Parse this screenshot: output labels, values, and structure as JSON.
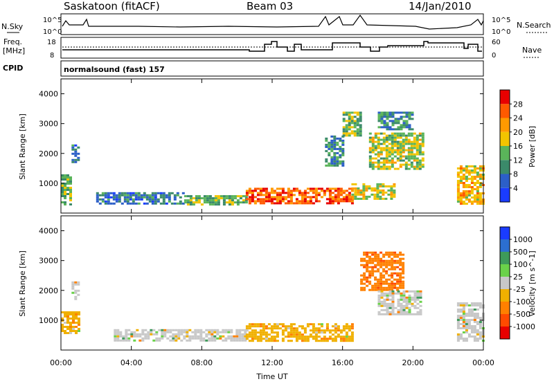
{
  "header": {
    "station": "Saskatoon (fitACF)",
    "beam": "Beam 03",
    "date": "14/Jan/2010"
  },
  "top_panel": {
    "left_label": "N.Sky",
    "left_ticks": [
      "10^5",
      "10^0"
    ],
    "right_ticks": [
      "10^5",
      "10^0"
    ],
    "right_label": "N.Search"
  },
  "freq_panel": {
    "label_line1": "Freq.",
    "label_line2": "[MHz]",
    "left_ticks": [
      "18",
      "8"
    ],
    "right_ticks": [
      "60",
      "0"
    ],
    "right_label": "Nave"
  },
  "cpid": {
    "label": "CPID",
    "text": "normalsound (fast) 157"
  },
  "power_panel": {
    "ylabel": "Slant Range [km]",
    "yticks": [
      "1000",
      "2000",
      "3000",
      "4000"
    ],
    "colorbar": {
      "label": "Power [dB]",
      "ticks": [
        "4",
        "8",
        "12",
        "16",
        "20",
        "24",
        "28"
      ],
      "colors": [
        "#1a3cff",
        "#2c5fc8",
        "#3b8a6a",
        "#5ab45a",
        "#f2c400",
        "#ff9a00",
        "#ff5a00",
        "#e80000"
      ]
    }
  },
  "velocity_panel": {
    "ylabel": "Slant Range [km]",
    "yticks": [
      "1000",
      "2000",
      "3000",
      "4000"
    ],
    "colorbar": {
      "label": "Velocity [m s^-1]",
      "ticks": [
        "1000",
        "500",
        "100",
        "25",
        "-25",
        "-100",
        "-500",
        "-1000"
      ],
      "colors": [
        "#1a3cff",
        "#2c6fd0",
        "#3e9a5a",
        "#6ad24a",
        "#c8c8c8",
        "#f0b000",
        "#ff8000",
        "#ff4a00",
        "#e80000"
      ]
    }
  },
  "xaxis": {
    "ticks": [
      "00:00",
      "04:00",
      "08:00",
      "12:00",
      "16:00",
      "20:00",
      "00:00"
    ],
    "label": "Time UT"
  },
  "chart_data": [
    {
      "type": "heatmap",
      "title": "",
      "xlabel": "Time UT",
      "ylabel": "Slant Range [km]",
      "xlim": [
        0,
        24
      ],
      "ylim": [
        0,
        4500
      ],
      "colorbar": {
        "label": "Power [dB]",
        "range": [
          0,
          32
        ]
      },
      "regions": [
        {
          "t0": 0.0,
          "t1": 0.6,
          "r0": 300,
          "r1": 1300,
          "value": 14
        },
        {
          "t0": 0.6,
          "t1": 1.0,
          "r0": 1700,
          "r1": 2300,
          "value": 8
        },
        {
          "t0": 2.0,
          "t1": 7.0,
          "r0": 300,
          "r1": 700,
          "value": 8
        },
        {
          "t0": 7.0,
          "t1": 10.5,
          "r0": 300,
          "r1": 600,
          "value": 14
        },
        {
          "t0": 10.5,
          "t1": 16.5,
          "r0": 300,
          "r1": 850,
          "value": 26
        },
        {
          "t0": 15.0,
          "t1": 16.0,
          "r0": 1600,
          "r1": 2600,
          "value": 10
        },
        {
          "t0": 16.0,
          "t1": 17.0,
          "r0": 2600,
          "r1": 3400,
          "value": 14
        },
        {
          "t0": 16.5,
          "t1": 19.0,
          "r0": 500,
          "r1": 1000,
          "value": 18
        },
        {
          "t0": 17.5,
          "t1": 20.5,
          "r0": 1500,
          "r1": 2700,
          "value": 16
        },
        {
          "t0": 18.0,
          "t1": 20.0,
          "r0": 2800,
          "r1": 3400,
          "value": 10
        },
        {
          "t0": 22.5,
          "t1": 24.0,
          "r0": 300,
          "r1": 1600,
          "value": 20
        }
      ]
    },
    {
      "type": "heatmap",
      "title": "",
      "xlabel": "Time UT",
      "ylabel": "Slant Range [km]",
      "xlim": [
        0,
        24
      ],
      "ylim": [
        0,
        4500
      ],
      "colorbar": {
        "label": "Velocity [m s^-1]",
        "range": [
          -1000,
          1000
        ]
      },
      "regions": [
        {
          "t0": 0.0,
          "t1": 1.0,
          "r0": 600,
          "r1": 1300,
          "value": -100
        },
        {
          "t0": 0.6,
          "t1": 1.0,
          "r0": 1700,
          "r1": 2300,
          "value": 0
        },
        {
          "t0": 3.0,
          "t1": 10.5,
          "r0": 300,
          "r1": 700,
          "value": 0
        },
        {
          "t0": 10.5,
          "t1": 16.5,
          "r0": 300,
          "r1": 900,
          "value": -100
        },
        {
          "t0": 17.0,
          "t1": 19.5,
          "r0": 2000,
          "r1": 3300,
          "value": -500
        },
        {
          "t0": 18.0,
          "t1": 20.5,
          "r0": 1200,
          "r1": 2000,
          "value": 0
        },
        {
          "t0": 22.5,
          "t1": 24.0,
          "r0": 300,
          "r1": 1600,
          "value": 0
        }
      ]
    }
  ]
}
